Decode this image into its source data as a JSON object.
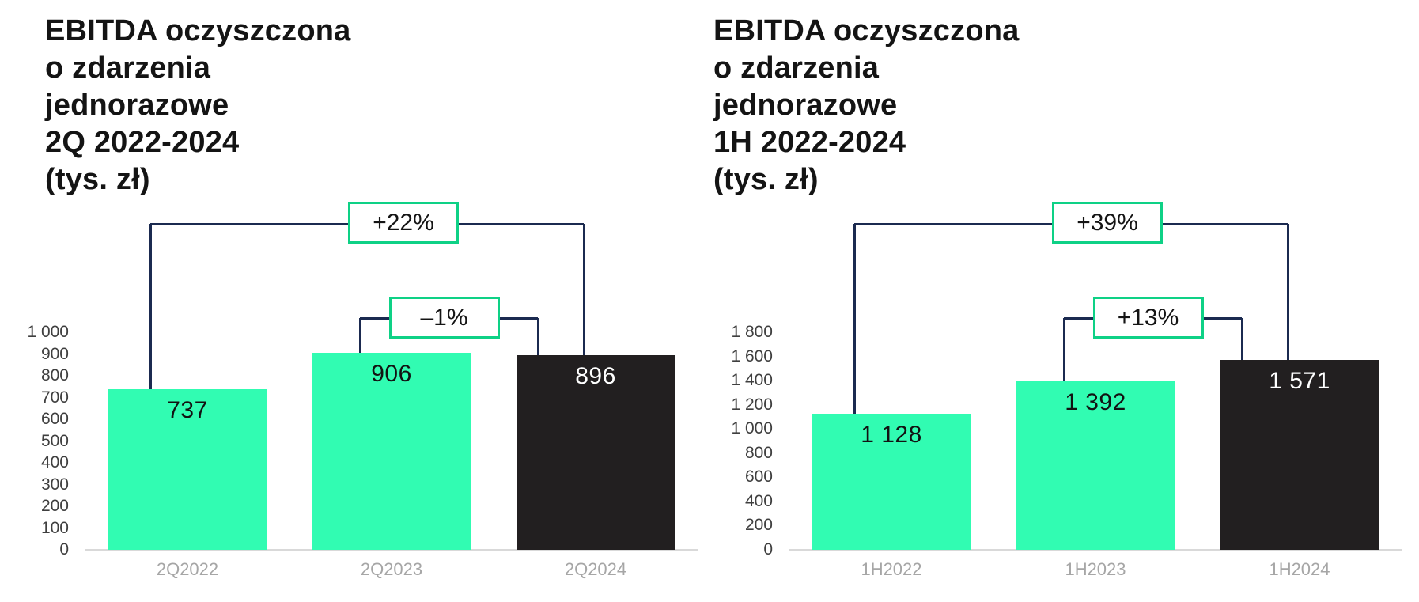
{
  "figure": {
    "description": "Two bar charts comparing adjusted EBITDA",
    "background": "#FFFFFF"
  },
  "chart_data": [
    {
      "type": "bar",
      "title": "EBITDA oczyszczona o zdarzenia jednorazowe 2Q 2022-2024 (tys. zł)",
      "title_lines": [
        "EBITDA oczyszczona",
        "o zdarzenia",
        "jednorazowe",
        "2Q 2022-2024",
        "(tys. zł)"
      ],
      "unit": "tys. zł",
      "categories": [
        "2Q2022",
        "2Q2023",
        "2Q2024"
      ],
      "values": [
        737,
        906,
        896
      ],
      "value_labels": [
        "737",
        "906",
        "896"
      ],
      "bar_palette": [
        "mint",
        "mint",
        "dark"
      ],
      "ylim": [
        0,
        1000
      ],
      "y_step": 100,
      "y_tick_labels": [
        "1 000",
        "900",
        "800",
        "700",
        "600",
        "500",
        "400",
        "300",
        "200",
        "100",
        "0"
      ],
      "grid": false,
      "legend": null,
      "annotations": [
        {
          "label": "+22%",
          "from": 0,
          "to": 2
        },
        {
          "label": "–1%",
          "from": 1,
          "to": 2
        }
      ]
    },
    {
      "type": "bar",
      "title": "EBITDA oczyszczona o zdarzenia jednorazowe 1H 2022-2024 (tys. zł)",
      "title_lines": [
        "EBITDA oczyszczona",
        "o zdarzenia",
        "jednorazowe",
        "1H 2022-2024",
        "(tys. zł)"
      ],
      "unit": "tys. zł",
      "categories": [
        "1H2022",
        "1H2023",
        "1H2024"
      ],
      "values": [
        1128,
        1392,
        1571
      ],
      "value_labels": [
        "1 128",
        "1 392",
        "1 571"
      ],
      "bar_palette": [
        "mint",
        "mint",
        "dark"
      ],
      "ylim": [
        0,
        1800
      ],
      "y_step": 200,
      "y_tick_labels": [
        "1 800",
        "1 600",
        "1 400",
        "1 200",
        "1 000",
        "800",
        "600",
        "400",
        "200",
        "0"
      ],
      "grid": false,
      "legend": null,
      "annotations": [
        {
          "label": "+39%",
          "from": 0,
          "to": 2
        },
        {
          "label": "+13%",
          "from": 1,
          "to": 2
        }
      ]
    }
  ],
  "colors": {
    "bar_mint": "#31FCB2",
    "bar_dark": "#221F20",
    "label_on_mint": "#121212",
    "label_on_dark": "#FFFFFF",
    "annotation_border": "#0ED186",
    "annotation_text": "#141414",
    "connector": "#1B2A50",
    "baseline": "#D9D9D9",
    "tick_text": "#3F3F3F",
    "category_text": "#A6A6A6",
    "title_text": "#141414",
    "background": "#FFFFFF"
  }
}
